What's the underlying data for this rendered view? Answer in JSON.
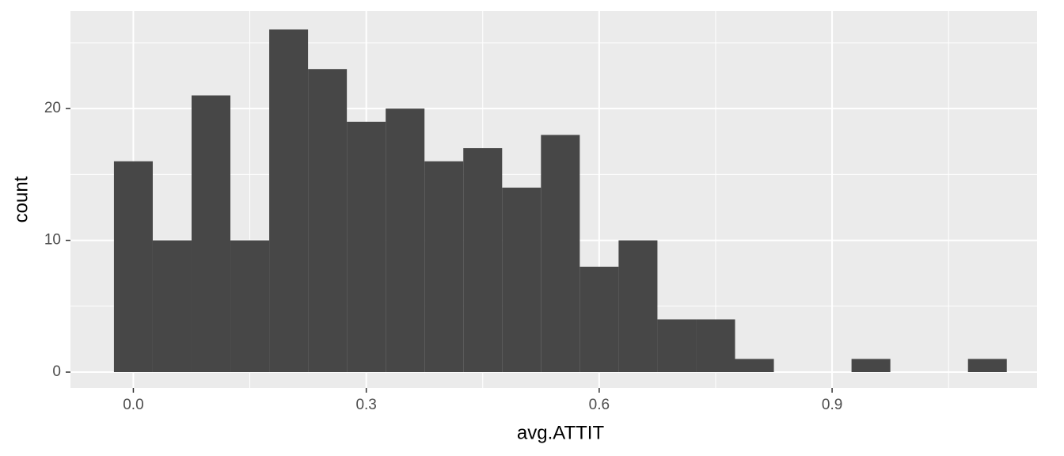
{
  "chart_data": {
    "type": "histogram",
    "x_label": "avg.ATTIT",
    "y_label": "count",
    "bins": [
      -0.025,
      0.025,
      0.075,
      0.125,
      0.175,
      0.225,
      0.275,
      0.325,
      0.375,
      0.425,
      0.475,
      0.525,
      0.575,
      0.625,
      0.675,
      0.725,
      0.775,
      0.825,
      0.875,
      0.925,
      0.975,
      1.025,
      1.075,
      1.125
    ],
    "counts": [
      16,
      10,
      21,
      10,
      26,
      23,
      19,
      20,
      16,
      17,
      14,
      18,
      8,
      10,
      4,
      4,
      1,
      0,
      0,
      1,
      0,
      0,
      1
    ],
    "color": "#474747",
    "xlim": [
      -0.081,
      1.164
    ],
    "ylim": [
      -1.2,
      27.4
    ],
    "xticks": [
      {
        "value": 0,
        "label": "0.0"
      },
      0.3,
      0.6,
      0.9
    ],
    "yticks": [
      0,
      10,
      20
    ],
    "x_minor_grid": [
      0.15,
      0.45,
      0.75,
      1.05
    ],
    "y_minor_grid": [
      5,
      15,
      25
    ],
    "grid": true
  }
}
